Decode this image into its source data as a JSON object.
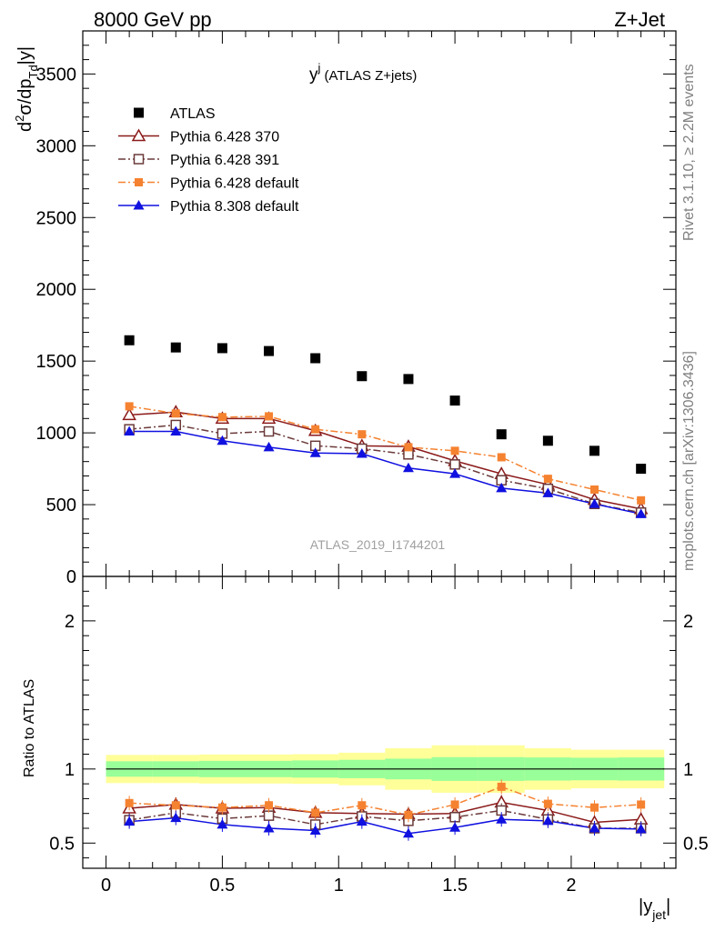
{
  "header": {
    "left": "8000 GeV pp",
    "right": "Z+Jet",
    "rivet_label": "Rivet 3.1.10, ≥ 2.2M events",
    "mcplots_label": "mcplots.cern.ch [arXiv:1306.3436]",
    "analysis_id": "ATLAS_2019_I1744201"
  },
  "chart_data": [
    {
      "type": "scatter",
      "title": "y^j (ATLAS Z+jets)",
      "title_main": "y",
      "title_sup": "j",
      "title_rest": " (ATLAS Z+jets)",
      "ylabel": "d²σ/dp_Td|y|",
      "xlabel": "|y_jet|",
      "xlim": [
        -0.1,
        2.45
      ],
      "ylim": [
        0,
        3800
      ],
      "yticks": [
        0,
        500,
        1000,
        1500,
        2000,
        2500,
        3000,
        3500
      ],
      "ytick_labels": [
        "0",
        "500",
        "1000",
        "1500",
        "2000",
        "2500",
        "3000",
        "3500"
      ],
      "x": [
        0.1,
        0.3,
        0.5,
        0.7,
        0.9,
        1.1,
        1.3,
        1.5,
        1.7,
        1.9,
        2.1,
        2.3
      ],
      "legend_position": "top-left",
      "series": [
        {
          "name": "ATLAS",
          "marker": "square",
          "line": "none",
          "color": "#000000",
          "values": [
            1645,
            1595,
            1590,
            1570,
            1520,
            1395,
            1375,
            1225,
            990,
            945,
            875,
            750
          ]
        },
        {
          "name": "Pythia 6.428 370",
          "marker": "open-triangle",
          "line": "solid",
          "color": "#8b1a1a",
          "values": [
            1125,
            1145,
            1100,
            1100,
            1015,
            910,
            905,
            805,
            715,
            640,
            535,
            470
          ]
        },
        {
          "name": "Pythia 6.428 391",
          "marker": "open-square",
          "line": "dashdot",
          "color": "#6b3a3a",
          "values": [
            1025,
            1055,
            995,
            1010,
            910,
            890,
            850,
            780,
            670,
            610,
            505,
            445
          ]
        },
        {
          "name": "Pythia 6.428 default",
          "marker": "filled-square",
          "line": "dashdot",
          "color": "#f58230",
          "values": [
            1185,
            1135,
            1110,
            1115,
            1025,
            990,
            900,
            875,
            830,
            680,
            605,
            530
          ]
        },
        {
          "name": "Pythia 8.308 default",
          "marker": "filled-triangle",
          "line": "solid",
          "color": "#1010e0",
          "values": [
            1010,
            1010,
            945,
            900,
            860,
            855,
            755,
            715,
            615,
            580,
            505,
            435
          ]
        }
      ]
    },
    {
      "type": "line",
      "ylabel": "Ratio to ATLAS",
      "xlabel": "|y_jet|",
      "xlim": [
        -0.1,
        2.45
      ],
      "ylim": [
        0.33,
        2.3
      ],
      "yticks": [
        0.5,
        1,
        2
      ],
      "ytick_labels": [
        "0.5",
        "1",
        "2"
      ],
      "xticks": [
        0,
        0.5,
        1,
        1.5,
        2
      ],
      "xtick_labels": [
        "0",
        "0.5",
        "1",
        "1.5",
        "2"
      ],
      "x": [
        0.1,
        0.3,
        0.5,
        0.7,
        0.9,
        1.1,
        1.3,
        1.5,
        1.7,
        1.9,
        2.1,
        2.3
      ],
      "bin_edges": [
        0,
        0.2,
        0.4,
        0.6,
        0.8,
        1.0,
        1.2,
        1.4,
        1.6,
        1.8,
        2.0,
        2.2,
        2.4
      ],
      "band_inner": [
        0.052,
        0.052,
        0.055,
        0.055,
        0.058,
        0.062,
        0.07,
        0.08,
        0.08,
        0.078,
        0.076,
        0.078
      ],
      "band_outer": [
        0.095,
        0.095,
        0.098,
        0.098,
        0.1,
        0.11,
        0.14,
        0.16,
        0.16,
        0.14,
        0.13,
        0.13
      ],
      "band_colors": {
        "inner": "#99ff99",
        "outer": "#ffff99"
      },
      "series": [
        {
          "name": "Pythia 6.428 370",
          "values": [
            0.735,
            0.76,
            0.735,
            0.74,
            0.705,
            0.7,
            0.695,
            0.7,
            0.775,
            0.72,
            0.64,
            0.66
          ]
        },
        {
          "name": "Pythia 6.428 391",
          "values": [
            0.655,
            0.705,
            0.665,
            0.685,
            0.625,
            0.68,
            0.65,
            0.675,
            0.72,
            0.66,
            0.6,
            0.6
          ]
        },
        {
          "name": "Pythia 6.428 default",
          "values": [
            0.77,
            0.755,
            0.74,
            0.755,
            0.705,
            0.755,
            0.69,
            0.76,
            0.88,
            0.765,
            0.74,
            0.76
          ]
        },
        {
          "name": "Pythia 8.308 default",
          "values": [
            0.645,
            0.67,
            0.625,
            0.6,
            0.585,
            0.645,
            0.565,
            0.605,
            0.66,
            0.65,
            0.6,
            0.595
          ]
        }
      ]
    }
  ]
}
